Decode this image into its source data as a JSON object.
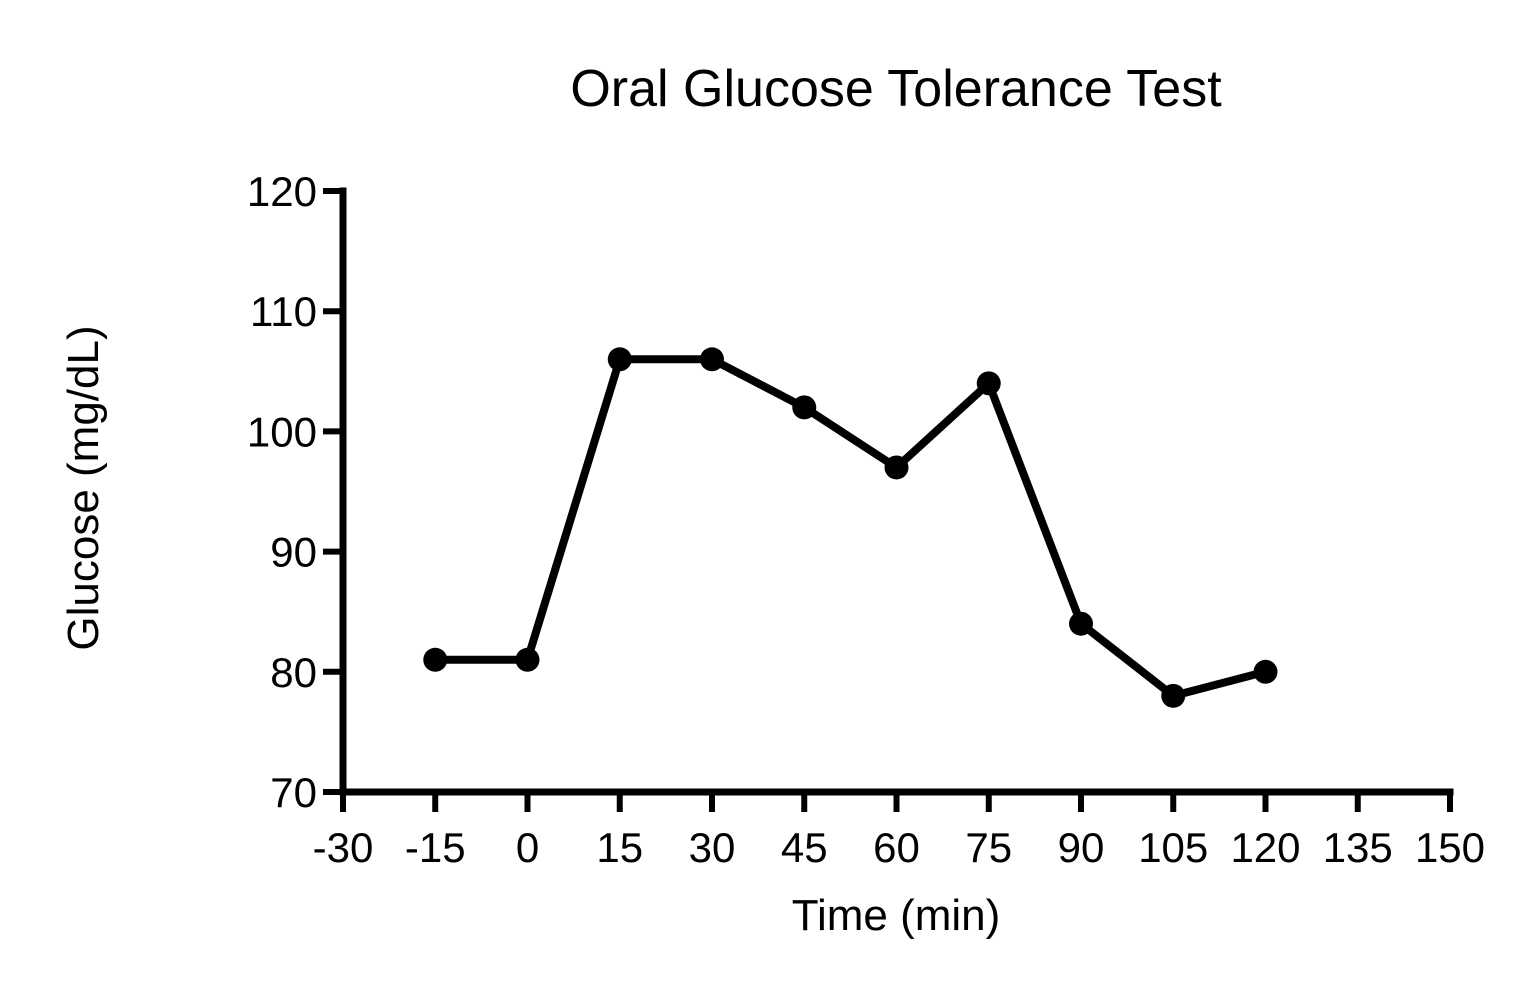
{
  "chart_data": {
    "type": "line",
    "title": "Oral Glucose Tolerance Test",
    "xlabel": "Time (min)",
    "ylabel": "Glucose (mg/dL)",
    "xlim": [
      -30,
      150
    ],
    "ylim": [
      70,
      120
    ],
    "x_ticks": [
      -30,
      -15,
      0,
      15,
      30,
      45,
      60,
      75,
      90,
      105,
      120,
      135,
      150
    ],
    "y_ticks": [
      70,
      80,
      90,
      100,
      110,
      120
    ],
    "grid": false,
    "legend": "none",
    "series": [
      {
        "name": "Glucose",
        "color": "#000000",
        "x": [
          -15,
          0,
          15,
          30,
          45,
          60,
          75,
          90,
          105,
          120
        ],
        "values": [
          81,
          81,
          106,
          106,
          102,
          97,
          104,
          84,
          78,
          80
        ]
      }
    ]
  }
}
